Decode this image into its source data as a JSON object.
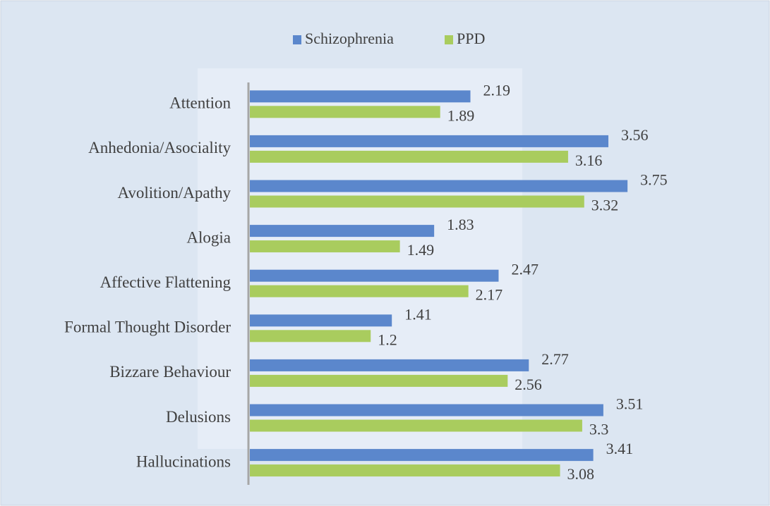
{
  "chart_data": {
    "type": "bar",
    "orientation": "horizontal",
    "categories": [
      "Attention",
      "Anhedonia/Asociality",
      "Avolition/Apathy",
      "Alogia",
      "Affective Flattening",
      "Formal Thought Disorder",
      "Bizzare Behaviour",
      "Delusions",
      "Hallucinations"
    ],
    "series": [
      {
        "name": "Schizophrenia",
        "color": "#5b87cc",
        "values": [
          2.19,
          3.56,
          3.75,
          1.83,
          2.47,
          1.41,
          2.77,
          3.51,
          3.41
        ]
      },
      {
        "name": "PPD",
        "color": "#a9cc5e",
        "values": [
          1.89,
          3.16,
          3.32,
          1.49,
          2.17,
          1.2,
          2.56,
          3.3,
          3.08
        ]
      }
    ],
    "xlim": [
      0,
      4.5
    ],
    "legend": "top"
  }
}
